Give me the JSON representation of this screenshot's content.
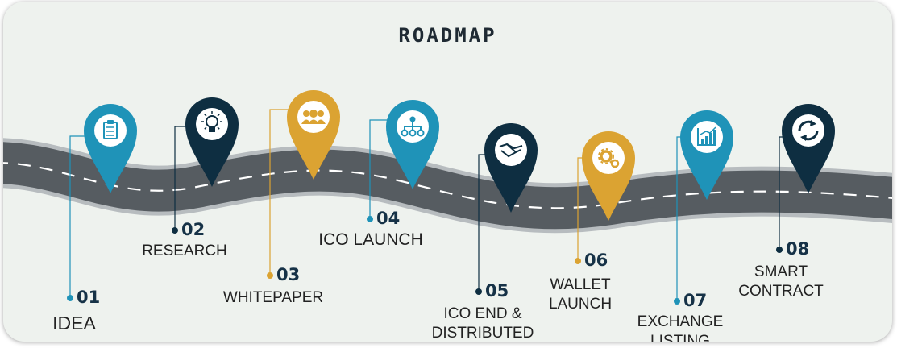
{
  "title": "ROADMAP",
  "colors": {
    "teal": "#1f93b8",
    "navy": "#0e2e41",
    "gold": "#dba332",
    "road": "#565c61",
    "road_edge": "#b7bcbf",
    "background": "#eef2ee"
  },
  "milestones": [
    {
      "number": "01",
      "lines": [
        "IDEA"
      ],
      "icon": "clipboard-icon",
      "color": "teal"
    },
    {
      "number": "02",
      "lines": [
        "RESEARCH"
      ],
      "icon": "lightbulb-icon",
      "color": "navy"
    },
    {
      "number": "03",
      "lines": [
        "WHITEPAPER"
      ],
      "icon": "team-icon",
      "color": "gold"
    },
    {
      "number": "04",
      "lines": [
        "ICO LAUNCH"
      ],
      "icon": "network-icon",
      "color": "teal"
    },
    {
      "number": "05",
      "lines": [
        "ICO END &",
        "DISTRIBUTED"
      ],
      "icon": "handshake-icon",
      "color": "navy"
    },
    {
      "number": "06",
      "lines": [
        "WALLET",
        "LAUNCH"
      ],
      "icon": "gears-icon",
      "color": "gold"
    },
    {
      "number": "07",
      "lines": [
        "EXCHANGE",
        "LISTING"
      ],
      "icon": "bar-chart-icon",
      "color": "teal"
    },
    {
      "number": "08",
      "lines": [
        "SMART",
        "CONTRACT"
      ],
      "icon": "cycle-icon",
      "color": "navy"
    }
  ]
}
